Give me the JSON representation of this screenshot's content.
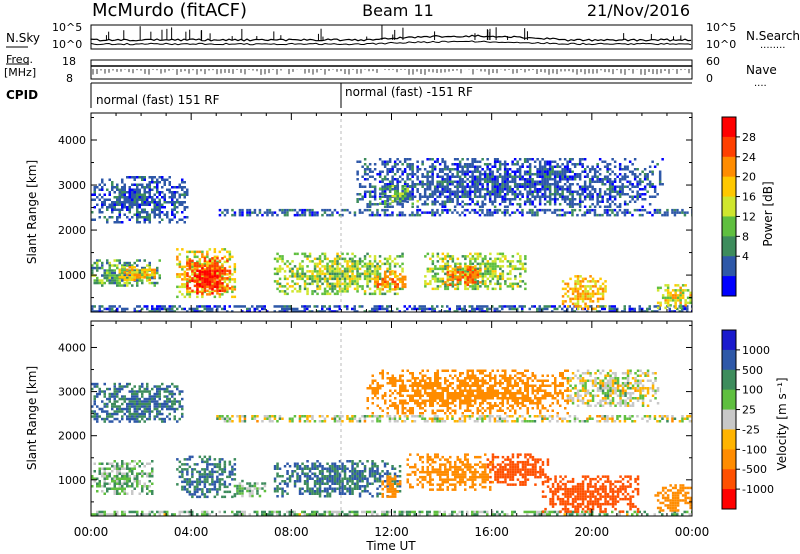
{
  "header": {
    "station": "McMurdo (fitACF)",
    "beam": "Beam 11",
    "date": "21/Nov/2016"
  },
  "noise_panel": {
    "left_label": "N.Sky",
    "right_label": "N.Search",
    "right_legend_dots": "........",
    "yticks_left": [
      "10^5",
      "10^0"
    ],
    "yticks_right": [
      "10^5",
      "10^0"
    ]
  },
  "freq_panel": {
    "left_label_top": "Freq.",
    "left_label_bottom": "[MHz]",
    "right_label": "Nave",
    "right_legend_dots": "....",
    "yticks_left": [
      "18",
      "8"
    ],
    "yticks_right": [
      "60",
      "0"
    ]
  },
  "cpid_panel": {
    "label": "CPID",
    "programs": [
      {
        "text": "normal (fast) 151 RF",
        "start_hour": 0
      },
      {
        "text": "normal (fast) -151 RF",
        "start_hour": 10.0
      }
    ]
  },
  "x_axis": {
    "label": "Time UT",
    "ticks": [
      "00:00",
      "04:00",
      "08:00",
      "12:00",
      "16:00",
      "20:00",
      "00:00"
    ],
    "range_hours": [
      0,
      24
    ]
  },
  "power_colorbar": {
    "label": "Power [dB]",
    "ticks": [
      "28",
      "24",
      "20",
      "16",
      "12",
      "8",
      "4"
    ],
    "colors": [
      "#ff0000",
      "#ff4000",
      "#ff8c00",
      "#ffc800",
      "#cfe62e",
      "#5fbf3f",
      "#3d8c5c",
      "#2e58a8",
      "#0000ff"
    ]
  },
  "velocity_colorbar": {
    "label": "Velocity [m s⁻¹]",
    "ticks": [
      "1000",
      "500",
      "100",
      "25",
      "-25",
      "-100",
      "-500",
      "-1000"
    ],
    "colors": [
      "#1a1acd",
      "#2e58a8",
      "#3d8c5c",
      "#5fbf3f",
      "#c8c8c8",
      "#ffb400",
      "#ff8c00",
      "#ff5000",
      "#ff0000"
    ]
  },
  "chart_data": [
    {
      "type": "heatmap",
      "title": "Power",
      "xlabel": "Time UT",
      "ylabel": "Slant Range [km]",
      "xlim": [
        0,
        24
      ],
      "ylim": [
        180,
        4600
      ],
      "yticks": [
        1000,
        2000,
        3000,
        4000
      ],
      "colorbar": "Power [dB]",
      "clim": [
        0,
        30
      ],
      "regions": [
        {
          "t0": 0.0,
          "t1": 24.0,
          "r0": 190,
          "r1": 330,
          "value": 8
        },
        {
          "t0": 0.0,
          "t1": 2.7,
          "r0": 750,
          "r1": 1350,
          "value": 12
        },
        {
          "t0": 1.0,
          "t1": 2.5,
          "r0": 900,
          "r1": 1200,
          "value": 18
        },
        {
          "t0": 3.4,
          "t1": 5.7,
          "r0": 500,
          "r1": 1600,
          "value": 16
        },
        {
          "t0": 3.8,
          "t1": 5.5,
          "r0": 600,
          "r1": 1400,
          "value": 24
        },
        {
          "t0": 4.2,
          "t1": 5.0,
          "r0": 700,
          "r1": 1100,
          "value": 28
        },
        {
          "t0": 7.3,
          "t1": 12.4,
          "r0": 600,
          "r1": 1500,
          "value": 14
        },
        {
          "t0": 11.3,
          "t1": 12.5,
          "r0": 700,
          "r1": 1100,
          "value": 20
        },
        {
          "t0": 13.3,
          "t1": 17.3,
          "r0": 700,
          "r1": 1500,
          "value": 14
        },
        {
          "t0": 14.0,
          "t1": 15.5,
          "r0": 800,
          "r1": 1200,
          "value": 22
        },
        {
          "t0": 18.8,
          "t1": 20.5,
          "r0": 250,
          "r1": 1000,
          "value": 18
        },
        {
          "t0": 22.6,
          "t1": 24.0,
          "r0": 250,
          "r1": 800,
          "value": 16
        },
        {
          "t0": 0.0,
          "t1": 3.8,
          "r0": 2200,
          "r1": 3200,
          "value": 8
        },
        {
          "t0": 5.0,
          "t1": 24.0,
          "r0": 2330,
          "r1": 2470,
          "value": 8
        },
        {
          "t0": 10.6,
          "t1": 22.8,
          "r0": 2500,
          "r1": 3600,
          "value": 8
        },
        {
          "t0": 11.5,
          "t1": 13.0,
          "r0": 2600,
          "r1": 3000,
          "value": 12
        }
      ]
    },
    {
      "type": "heatmap",
      "title": "Velocity",
      "xlabel": "Time UT",
      "ylabel": "Slant Range [km]",
      "xlim": [
        0,
        24
      ],
      "ylim": [
        180,
        4600
      ],
      "yticks": [
        1000,
        2000,
        3000,
        4000
      ],
      "colorbar": "Velocity [m s⁻¹]",
      "clim": [
        -1000,
        1000
      ],
      "regions": [
        {
          "t0": 0.0,
          "t1": 24.0,
          "r0": 190,
          "r1": 300,
          "value": 50
        },
        {
          "t0": 0.0,
          "t1": 2.4,
          "r0": 700,
          "r1": 1450,
          "value": 50
        },
        {
          "t0": 3.4,
          "t1": 5.7,
          "r0": 600,
          "r1": 1550,
          "value": 300
        },
        {
          "t0": 5.7,
          "t1": 6.9,
          "r0": 650,
          "r1": 1000,
          "value": 50
        },
        {
          "t0": 7.3,
          "t1": 12.3,
          "r0": 650,
          "r1": 1450,
          "value": 300
        },
        {
          "t0": 11.6,
          "t1": 12.3,
          "r0": 600,
          "r1": 1100,
          "value": -150
        },
        {
          "t0": 12.6,
          "t1": 16.0,
          "r0": 800,
          "r1": 1600,
          "value": -200
        },
        {
          "t0": 15.8,
          "t1": 18.2,
          "r0": 900,
          "r1": 1600,
          "value": -400
        },
        {
          "t0": 18.0,
          "t1": 21.8,
          "r0": 250,
          "r1": 1100,
          "value": -400
        },
        {
          "t0": 22.5,
          "t1": 24.0,
          "r0": 300,
          "r1": 900,
          "value": -200
        },
        {
          "t0": 0.0,
          "t1": 3.6,
          "r0": 2300,
          "r1": 3200,
          "value": 300
        },
        {
          "t0": 5.0,
          "t1": 24.0,
          "r0": 2350,
          "r1": 2470,
          "value": 0
        },
        {
          "t0": 11.0,
          "t1": 19.0,
          "r0": 2500,
          "r1": 3500,
          "value": -150
        },
        {
          "t0": 19.0,
          "t1": 22.6,
          "r0": 2700,
          "r1": 3500,
          "value": 0
        }
      ]
    }
  ]
}
